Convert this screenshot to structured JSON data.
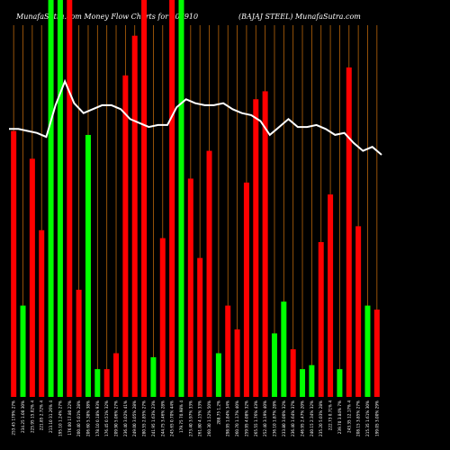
{
  "header": {
    "title": "MunafaSutra.com  Money Flow  Charts for 507910",
    "stock": "(BAJAJ STEEL) MunafaSutra.com"
  },
  "colors": {
    "background": "#000000",
    "up": "#00ff00",
    "down": "#ff0000",
    "grid": "#b8650a",
    "line": "#ffffff",
    "text": "#ffffff"
  },
  "chart_data": {
    "type": "bar",
    "title": "MunafaSutra.com  Money Flow  Charts for 507910",
    "subtitle": "(BAJAJ STEEL) MunafaSutra.com",
    "bars": [
      {
        "label": "253.45 179% 27%",
        "value": 0.67,
        "color": "red"
      },
      {
        "label": "234.25 1.00 30%",
        "value": 0.23,
        "color": "green"
      },
      {
        "label": "225.95 15.02% 4",
        "value": 0.6,
        "color": "red"
      },
      {
        "label": "221.85 2.72% 4",
        "value": 0.42,
        "color": "red"
      },
      {
        "label": "213.10 31.26% 4",
        "value": 1.0,
        "color": "green"
      },
      {
        "label": "195.10 1.24% 27%",
        "value": 1.0,
        "color": "green"
      },
      {
        "label": "176.00 17.80 22%",
        "value": 1.0,
        "color": "red"
      },
      {
        "label": "200.40 5.01% 28%",
        "value": 0.27,
        "color": "red"
      },
      {
        "label": "206.60 5.38% 38%",
        "value": 0.66,
        "color": "green"
      },
      {
        "label": "178.10 0.18% 93%",
        "value": 0.07,
        "color": "green"
      },
      {
        "label": "176.45 0.51% 32%",
        "value": 0.07,
        "color": "red"
      },
      {
        "label": "209.90 5.06% 27%",
        "value": 0.11,
        "color": "red"
      },
      {
        "label": "236.40 3.02% 41%",
        "value": 0.81,
        "color": "red"
      },
      {
        "label": "249.00 3.05% 28%",
        "value": 0.91,
        "color": "red"
      },
      {
        "label": "280.55 2.85% 27%",
        "value": 1.0,
        "color": "red"
      },
      {
        "label": "241.95 1.63% 23%",
        "value": 0.1,
        "color": "green"
      },
      {
        "label": "244.75 3.46% 28%",
        "value": 0.4,
        "color": "red"
      },
      {
        "label": "245.65 0.70% 44%",
        "value": 1.0,
        "color": "red"
      },
      {
        "label": "179.75 70.98% 4",
        "value": 1.0,
        "color": "green"
      },
      {
        "label": "273.40 3.97% 33%",
        "value": 0.55,
        "color": "red"
      },
      {
        "label": "261.80 4.15% 33%",
        "value": 0.35,
        "color": "red"
      },
      {
        "label": "260.30 1.52% 50%",
        "value": 0.62,
        "color": "red"
      },
      {
        "label": "288.75 1.2%",
        "value": 0.11,
        "color": "green"
      },
      {
        "label": "298.95 1.84% 34%",
        "value": 0.23,
        "color": "red"
      },
      {
        "label": "260.70 1.17% 40%",
        "value": 0.17,
        "color": "red"
      },
      {
        "label": "259.95 4.08% 32%",
        "value": 0.54,
        "color": "red"
      },
      {
        "label": "265.55 1.76% 43%",
        "value": 0.75,
        "color": "red"
      },
      {
        "label": "252.40 3.19% 40%",
        "value": 0.77,
        "color": "red"
      },
      {
        "label": "236.10 1.87% 28%",
        "value": 0.16,
        "color": "green"
      },
      {
        "label": "233.80 3.00% 32%",
        "value": 0.24,
        "color": "green"
      },
      {
        "label": "236.40 1.64% 37%",
        "value": 0.12,
        "color": "red"
      },
      {
        "label": "246.95 2.47% 20%",
        "value": 0.07,
        "color": "green"
      },
      {
        "label": "240.15 2.34% 32%",
        "value": 0.08,
        "color": "green"
      },
      {
        "label": "235.20 5.03% 28%",
        "value": 0.39,
        "color": "red"
      },
      {
        "label": "222.73 0.71% 4",
        "value": 0.51,
        "color": "red"
      },
      {
        "label": "239.70 3.84% 7%",
        "value": 0.07,
        "color": "green"
      },
      {
        "label": "243.35 12.17% 4",
        "value": 0.83,
        "color": "red"
      },
      {
        "label": "208.15 3.85% 27%",
        "value": 0.43,
        "color": "red"
      },
      {
        "label": "215.35 1.61% 30%",
        "value": 0.23,
        "color": "green"
      },
      {
        "label": "199.05 3.00% 29%",
        "value": 0.22,
        "color": "red"
      }
    ],
    "line": [
      0.675,
      0.675,
      0.67,
      0.665,
      0.655,
      0.735,
      0.795,
      0.74,
      0.715,
      0.725,
      0.735,
      0.735,
      0.725,
      0.7,
      0.69,
      0.68,
      0.685,
      0.685,
      0.73,
      0.75,
      0.74,
      0.735,
      0.735,
      0.74,
      0.725,
      0.715,
      0.71,
      0.695,
      0.66,
      0.68,
      0.7,
      0.68,
      0.68,
      0.685,
      0.675,
      0.66,
      0.665,
      0.64,
      0.62,
      0.63,
      0.61
    ],
    "ylim": [
      0,
      1
    ]
  }
}
